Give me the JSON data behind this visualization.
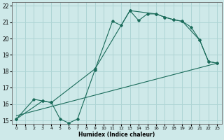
{
  "xlabel": "Humidex (Indice chaleur)",
  "bg_color": "#cee9e9",
  "grid_color": "#aed4d4",
  "line_color": "#1a6b5a",
  "xlim": [
    -0.5,
    23.5
  ],
  "ylim": [
    14.8,
    22.2
  ],
  "xticks": [
    0,
    1,
    2,
    3,
    4,
    5,
    6,
    7,
    8,
    9,
    10,
    11,
    12,
    13,
    14,
    15,
    16,
    17,
    18,
    19,
    20,
    21,
    22,
    23
  ],
  "yticks": [
    15,
    16,
    17,
    18,
    19,
    20,
    21,
    22
  ],
  "line1_x": [
    0,
    2,
    3,
    4,
    5,
    6,
    7,
    9,
    11,
    12,
    13,
    14,
    15,
    16,
    17,
    18,
    19,
    20,
    21,
    22,
    23
  ],
  "line1_y": [
    15.1,
    16.3,
    16.2,
    16.1,
    15.1,
    14.85,
    15.1,
    18.1,
    21.05,
    20.8,
    21.7,
    21.1,
    21.5,
    21.5,
    21.3,
    21.15,
    21.05,
    20.7,
    19.9,
    18.6,
    18.5
  ],
  "line2_x": [
    0,
    3,
    4,
    9,
    13,
    16,
    17,
    18,
    19,
    21,
    22,
    23
  ],
  "line2_y": [
    15.1,
    16.2,
    16.1,
    18.15,
    21.7,
    21.5,
    21.3,
    21.15,
    21.05,
    19.9,
    18.6,
    18.5
  ],
  "line3_x": [
    0,
    23
  ],
  "line3_y": [
    15.3,
    18.5
  ]
}
